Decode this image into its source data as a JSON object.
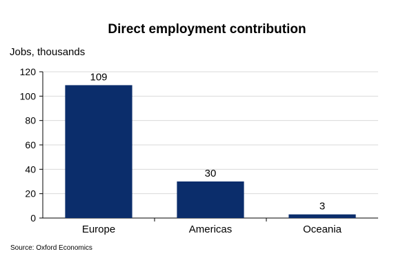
{
  "chart_data": {
    "type": "bar",
    "title": "Direct employment contribution",
    "ylabel": "Jobs, thousands",
    "xlabel": "",
    "categories": [
      "Europe",
      "Americas",
      "Oceania"
    ],
    "values": [
      109,
      30,
      3
    ],
    "data_labels": [
      "109",
      "30",
      "3"
    ],
    "ylim": [
      0,
      120
    ],
    "yticks": [
      0,
      20,
      40,
      60,
      80,
      100,
      120
    ],
    "grid": true,
    "legend": "none",
    "bar_color": "#0b2d6b",
    "grid_color": "#d9d9d9"
  },
  "source": "Source: Oxford Economics"
}
